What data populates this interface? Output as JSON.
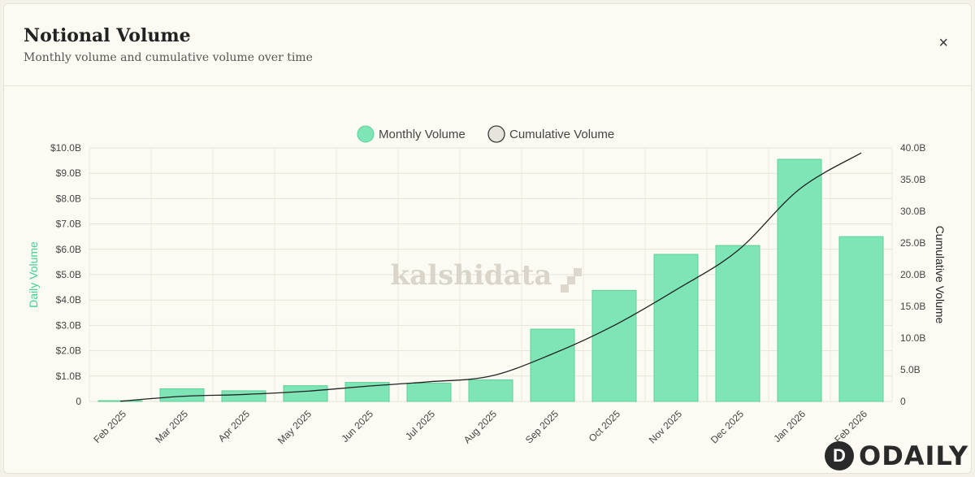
{
  "header": {
    "title": "Notional Volume",
    "subtitle": "Monthly volume and cumulative volume over time",
    "close_label": "×"
  },
  "watermark": "kalshidata",
  "brand": "ODAILY",
  "chart_data": {
    "type": "bar",
    "categories": [
      "Feb 2025",
      "Mar 2025",
      "Apr 2025",
      "May 2025",
      "Jun 2025",
      "Jul 2025",
      "Aug 2025",
      "Sep 2025",
      "Oct 2025",
      "Nov 2025",
      "Dec 2025",
      "Jan 2026",
      "Feb 2026"
    ],
    "series": [
      {
        "name": "Monthly Volume",
        "type": "bar",
        "axis": "left",
        "color": "#7de5b6",
        "values": [
          0.03,
          0.5,
          0.42,
          0.62,
          0.75,
          0.72,
          0.85,
          2.85,
          4.38,
          5.8,
          6.15,
          9.55,
          6.5
        ]
      },
      {
        "name": "Cumulative Volume",
        "type": "line",
        "axis": "right",
        "color": "#222222",
        "values": [
          0.03,
          0.8,
          1.1,
          1.6,
          2.4,
          3.1,
          4.0,
          7.5,
          12.0,
          17.6,
          23.8,
          33.5,
          39.2
        ]
      }
    ],
    "ylabel": "Daily Volume",
    "y2label": "Cumulative Volume",
    "ylim": [
      0,
      10
    ],
    "y2lim": [
      0,
      40
    ],
    "yticks": [
      "0",
      "$1.0B",
      "$2.0B",
      "$3.0B",
      "$4.0B",
      "$5.0B",
      "$6.0B",
      "$7.0B",
      "$8.0B",
      "$9.0B",
      "$10.0B"
    ],
    "y2ticks": [
      "0",
      "5.0B",
      "10.0B",
      "15.0B",
      "20.0B",
      "25.0B",
      "30.0B",
      "35.0B",
      "40.0B"
    ],
    "grid": true,
    "legend_position": "top-center"
  }
}
